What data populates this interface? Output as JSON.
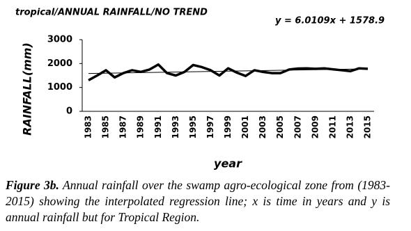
{
  "chart_data": {
    "type": "line",
    "title": "tropical/ANNUAL RAINFALL/NO TREND",
    "y_label": "RAINFALL(mm)",
    "x_label": "year",
    "categories": [
      "1983",
      null,
      "1985",
      null,
      "1987",
      null,
      "1989",
      null,
      "1991",
      null,
      "1993",
      null,
      "1995",
      null,
      "1997",
      null,
      "1999",
      null,
      "2001",
      null,
      "2003",
      null,
      "2005",
      null,
      "2007",
      null,
      "2009",
      null,
      "2011",
      null,
      "2013",
      null,
      "2015"
    ],
    "series": [
      {
        "color": "#000000",
        "values": [
          1300,
          1500,
          1720,
          1420,
          1600,
          1720,
          1650,
          1750,
          1960,
          1600,
          1500,
          1650,
          1940,
          1850,
          1720,
          1500,
          1800,
          1620,
          1480,
          1720,
          1650,
          1600,
          1600,
          1750,
          1790,
          1800,
          1780,
          1800,
          1760,
          1720,
          1680,
          1800,
          1780
        ]
      }
    ],
    "trendline": {
      "label": "y = 6.0109x + 1578.9",
      "slope": 6.0109,
      "intercept": 1578.9
    },
    "ylim": [
      0,
      3000
    ],
    "yticks": [
      0,
      1000,
      2000,
      3000
    ]
  },
  "caption": {
    "label": "Figure 3b.",
    "text": "Annual rainfall over the swamp agro-ecological zone from (1983-2015) showing the interpolated regression line; x is time in years and y is annual rainfall but for Tropical Region."
  }
}
